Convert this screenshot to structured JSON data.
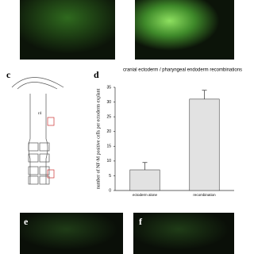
{
  "panels": {
    "c": "c",
    "d": "d",
    "e": "e",
    "f": "f"
  },
  "diagram": {
    "label": "r4"
  },
  "chart_data": {
    "type": "bar",
    "title": "cranial ectoderm / pharyngeal endoderm recombinations",
    "y_label": "number of NF-M positive cells per ectoderm explant",
    "categories": [
      "ectoderm alone",
      "recombination"
    ],
    "values": [
      7,
      31
    ],
    "errors": [
      2.5,
      3
    ],
    "color": "#e2e2e2",
    "ylim": [
      0,
      35
    ],
    "yticks": [
      0,
      5,
      10,
      15,
      20,
      25,
      30,
      35
    ],
    "grid": false
  }
}
